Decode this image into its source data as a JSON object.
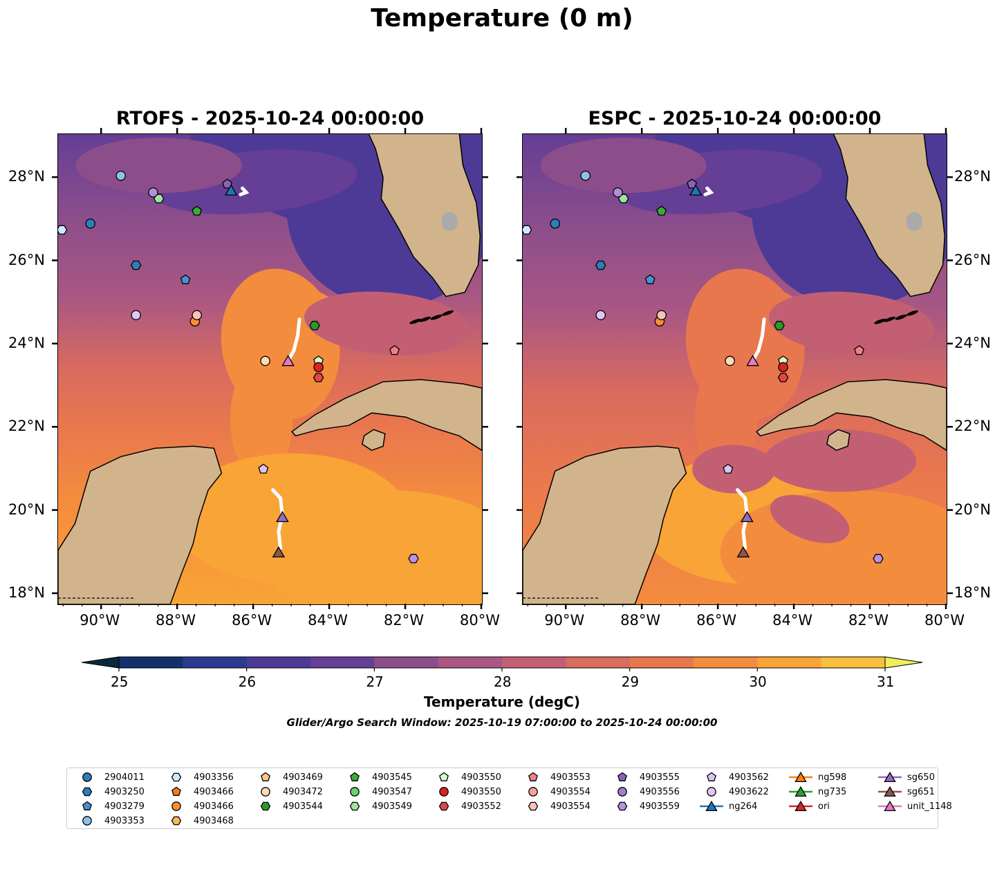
{
  "figure": {
    "suptitle": "Temperature (0 m)",
    "search_window": "Glider/Argo Search Window: 2025-10-19 07:00:00 to 2025-10-24 00:00:00"
  },
  "panels": [
    {
      "id": "rtofs",
      "title": "RTOFS - 2025-10-24 00:00:00"
    },
    {
      "id": "espc",
      "title": "ESPC - 2025-10-24 00:00:00"
    }
  ],
  "axes": {
    "lon_ticks": [
      "90°W",
      "88°W",
      "86°W",
      "84°W",
      "82°W",
      "80°W"
    ],
    "lat_ticks": [
      "28°N",
      "26°N",
      "24°N",
      "22°N",
      "20°N",
      "18°N"
    ],
    "lon_range": [
      -91.15,
      -80.0
    ],
    "lat_range": [
      17.75,
      29.05
    ]
  },
  "colorbar": {
    "label": "Temperature (degC)",
    "range": [
      25,
      31
    ],
    "step": 0.5,
    "tick_labels": [
      "25",
      "26",
      "27",
      "28",
      "29",
      "30",
      "31"
    ],
    "colors": [
      "#08293a",
      "#12306e",
      "#2d3a92",
      "#4d3a96",
      "#653e95",
      "#8c4e8b",
      "#aa5783",
      "#c35f73",
      "#d96b5f",
      "#e9774e",
      "#f48c3e",
      "#f9a436",
      "#f8c03c",
      "#f0ed5e"
    ]
  },
  "chart_data": {
    "type": "map",
    "title": "Temperature (0 m)",
    "variable": "sea surface temperature (degC)",
    "markers": [
      {
        "name": "2904011",
        "lon": -90.3,
        "lat": 26.9,
        "shape": "circle",
        "color": "#2e7db8"
      },
      {
        "name": "4903250",
        "lon": -89.1,
        "lat": 25.9,
        "shape": "hexagon",
        "color": "#2e7db8"
      },
      {
        "name": "4903279",
        "lon": -87.8,
        "lat": 25.55,
        "shape": "pentagon",
        "color": "#4a8fd0"
      },
      {
        "name": "4903353",
        "lon": -89.5,
        "lat": 28.05,
        "shape": "circle",
        "color": "#8fc1e6"
      },
      {
        "name": "4903356",
        "lon": -91.05,
        "lat": 26.75,
        "shape": "hexagon",
        "color": "#cfe9ff"
      },
      {
        "name": "4903466",
        "lon": -87.55,
        "lat": 24.55,
        "shape": "circle",
        "color": "#f98e35"
      },
      {
        "name": "4903472",
        "lon": -85.7,
        "lat": 23.6,
        "shape": "circle",
        "color": "#fdd9b4"
      },
      {
        "name": "4903544",
        "lon": -84.4,
        "lat": 24.45,
        "shape": "hexagon",
        "color": "#2a9a2a"
      },
      {
        "name": "4903545",
        "lon": -87.5,
        "lat": 27.2,
        "shape": "pentagon",
        "color": "#3bab3b"
      },
      {
        "name": "4903549",
        "lon": -88.5,
        "lat": 27.5,
        "shape": "hexagon",
        "color": "#9ee39e"
      },
      {
        "name": "4903550",
        "lon": -84.3,
        "lat": 23.6,
        "shape": "pentagon",
        "color": "#d8f7c7"
      },
      {
        "name": "4903550",
        "lon": -84.3,
        "lat": 23.45,
        "shape": "circle",
        "color": "#dd2222"
      },
      {
        "name": "4903552",
        "lon": -84.3,
        "lat": 23.2,
        "shape": "hexagon",
        "color": "#e04848"
      },
      {
        "name": "4903553",
        "lon": -82.3,
        "lat": 23.85,
        "shape": "pentagon",
        "color": "#f08080"
      },
      {
        "name": "4903554",
        "lon": -87.5,
        "lat": 24.7,
        "shape": "circle",
        "color": "#fbc1b5"
      },
      {
        "name": "4903555",
        "lon": -86.7,
        "lat": 27.85,
        "shape": "pentagon",
        "color": "#8a63b8"
      },
      {
        "name": "4903556",
        "lon": -88.65,
        "lat": 27.65,
        "shape": "circle",
        "color": "#b48ed8"
      },
      {
        "name": "4903559",
        "lon": -81.8,
        "lat": 18.85,
        "shape": "hexagon",
        "color": "#b792e2"
      },
      {
        "name": "4903562",
        "lon": -85.75,
        "lat": 21.0,
        "shape": "pentagon",
        "color": "#d9c3f2"
      },
      {
        "name": "4903622",
        "lon": -89.1,
        "lat": 24.7,
        "shape": "circle",
        "color": "#e0c6f8"
      },
      {
        "name": "ng264",
        "lon": -86.6,
        "lat": 27.7,
        "shape": "triangle",
        "color": "#1f77b4"
      },
      {
        "name": "sg650",
        "lon": -85.25,
        "lat": 19.85,
        "shape": "triangle",
        "color": "#8e6fc4"
      },
      {
        "name": "sg651",
        "lon": -85.35,
        "lat": 19.0,
        "shape": "triangle",
        "color": "#8c564b"
      },
      {
        "name": "unit_1148",
        "lon": -85.1,
        "lat": 23.6,
        "shape": "triangle",
        "color": "#e67ac3"
      }
    ]
  },
  "legend": {
    "items": [
      {
        "label": "2904011",
        "shape": "circle",
        "color": "#2e7db8"
      },
      {
        "label": "4903250",
        "shape": "hexagon",
        "color": "#2e7db8"
      },
      {
        "label": "4903279",
        "shape": "pentagon",
        "color": "#4a8fd0"
      },
      {
        "label": "4903353",
        "shape": "circle",
        "color": "#8fc1e6"
      },
      {
        "label": "4903356",
        "shape": "hexagon",
        "color": "#cfe9ff"
      },
      {
        "label": "4903466",
        "shape": "pentagon",
        "color": "#f57f17"
      },
      {
        "label": "4903466",
        "shape": "circle",
        "color": "#f98e35"
      },
      {
        "label": "4903468",
        "shape": "hexagon",
        "color": "#fdb463"
      },
      {
        "label": "4903469",
        "shape": "pentagon",
        "color": "#fbc48a"
      },
      {
        "label": "4903472",
        "shape": "circle",
        "color": "#fdd9b4"
      },
      {
        "label": "4903544",
        "shape": "hexagon",
        "color": "#2a9a2a"
      },
      {
        "label": "4903545",
        "shape": "pentagon",
        "color": "#3bab3b"
      },
      {
        "label": "4903547",
        "shape": "circle",
        "color": "#6dd06d"
      },
      {
        "label": "4903549",
        "shape": "hexagon",
        "color": "#9ee39e"
      },
      {
        "label": "4903550",
        "shape": "pentagon",
        "color": "#d8f7c7"
      },
      {
        "label": "4903550",
        "shape": "circle",
        "color": "#dd2222"
      },
      {
        "label": "4903552",
        "shape": "hexagon",
        "color": "#e04848"
      },
      {
        "label": "4903553",
        "shape": "pentagon",
        "color": "#f08080"
      },
      {
        "label": "4903554",
        "shape": "circle",
        "color": "#f4a39a"
      },
      {
        "label": "4903554",
        "shape": "hexagon",
        "color": "#fbc1b5"
      },
      {
        "label": "4903555",
        "shape": "pentagon",
        "color": "#8a63b8"
      },
      {
        "label": "4903556",
        "shape": "circle",
        "color": "#a47ccc"
      },
      {
        "label": "4903559",
        "shape": "hexagon",
        "color": "#b792e2"
      },
      {
        "label": "4903562",
        "shape": "pentagon",
        "color": "#d9c3f2"
      },
      {
        "label": "4903622",
        "shape": "circle",
        "color": "#e0c6f8"
      },
      {
        "label": "ng264",
        "shape": "triangle",
        "color": "#1f77b4",
        "line": true
      },
      {
        "label": "ng598",
        "shape": "triangle",
        "color": "#ff7f0e",
        "line": true
      },
      {
        "label": "ng735",
        "shape": "triangle",
        "color": "#2ca02c",
        "line": true
      },
      {
        "label": "ori",
        "shape": "triangle",
        "color": "#d62728",
        "line": true
      },
      {
        "label": "sg650",
        "shape": "triangle",
        "color": "#9467bd",
        "line": true
      },
      {
        "label": "sg651",
        "shape": "triangle",
        "color": "#8c564b",
        "line": true
      },
      {
        "label": "unit_1148",
        "shape": "triangle",
        "color": "#e377c2",
        "line": true
      }
    ]
  }
}
